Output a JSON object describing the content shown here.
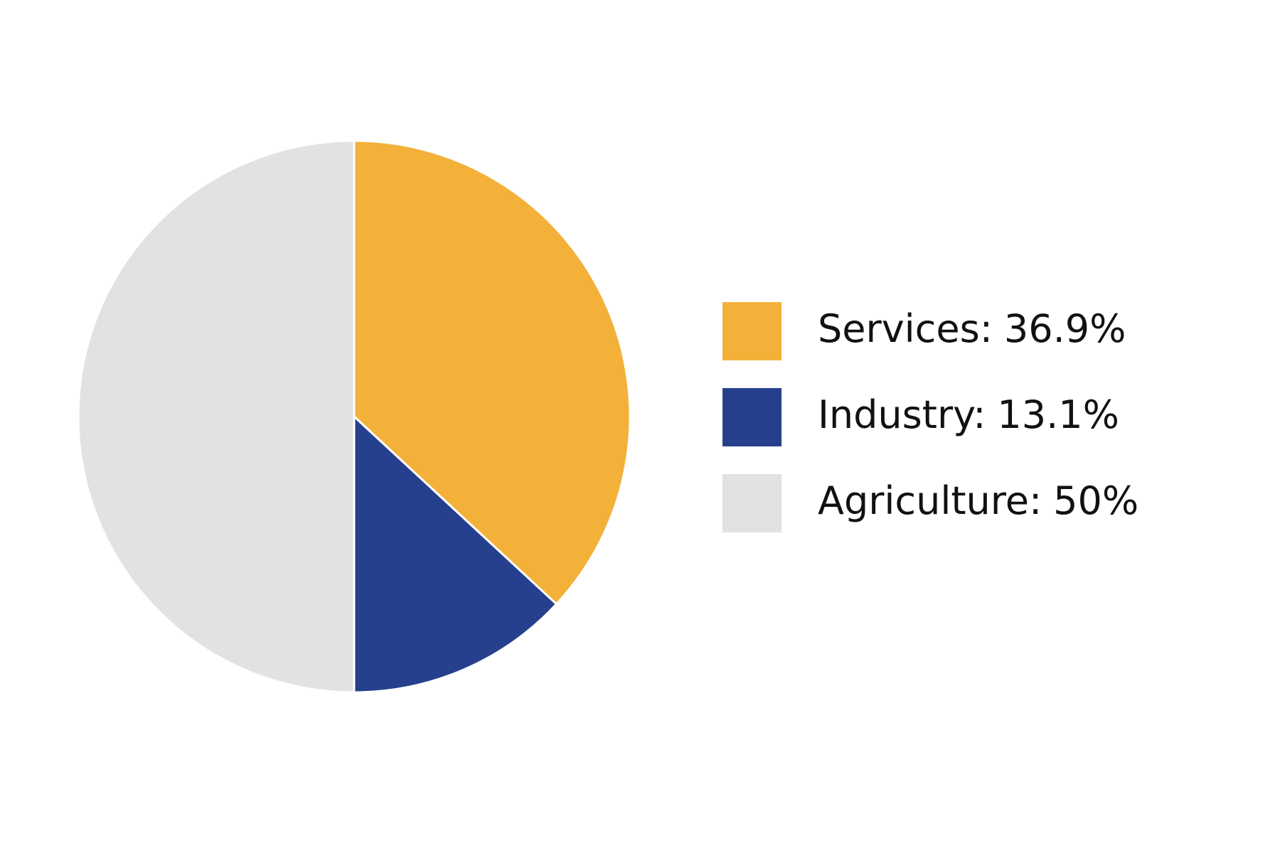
{
  "chart_data": {
    "type": "pie",
    "categories": [
      "Services:",
      "Industry:",
      "Agriculture:"
    ],
    "values": [
      36.9,
      13.1,
      50
    ],
    "value_labels": [
      "36.9%",
      "13.1%",
      "50%"
    ],
    "colors": [
      "#f3b13a",
      "#26408d",
      "#e1e2e4"
    ],
    "legend": "right"
  }
}
